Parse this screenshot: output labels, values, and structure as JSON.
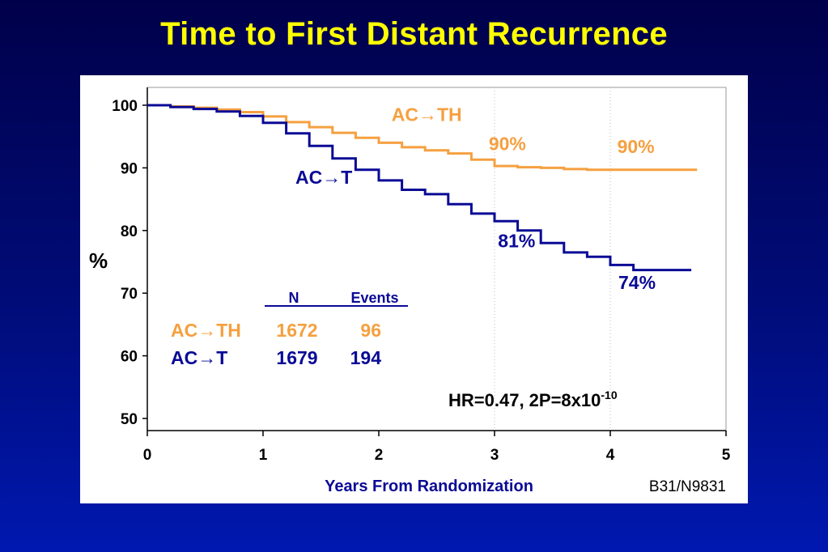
{
  "title": "Time to First Distant Recurrence",
  "source_label": "B31/N9831",
  "chart_data": {
    "type": "line",
    "xlabel": "Years From Randomization",
    "ylabel": "%",
    "xlim": [
      0,
      5
    ],
    "ylim": [
      50,
      100
    ],
    "x_ticks": [
      0,
      1,
      2,
      3,
      4,
      5
    ],
    "y_ticks": [
      50,
      60,
      70,
      80,
      90,
      100
    ],
    "reference_lines_x": [
      3,
      4
    ],
    "colors": {
      "ACTH": "#f5a040",
      "ACT": "#0a0a96",
      "axis": "#000000"
    },
    "series": [
      {
        "name": "AC→TH",
        "x": [
          0,
          0.2,
          0.4,
          0.6,
          0.8,
          1.0,
          1.2,
          1.4,
          1.6,
          1.8,
          2.0,
          2.2,
          2.4,
          2.6,
          2.8,
          3.0,
          3.2,
          3.4,
          3.6,
          3.8,
          4.0,
          4.2,
          4.4,
          4.6,
          4.75
        ],
        "y": [
          100,
          99.8,
          99.6,
          99.3,
          98.9,
          98.2,
          97.3,
          96.5,
          95.6,
          94.8,
          94.0,
          93.3,
          92.8,
          92.3,
          91.3,
          90.3,
          90.1,
          90.0,
          89.8,
          89.7,
          89.7,
          89.7,
          89.7,
          89.7,
          89.7
        ]
      },
      {
        "name": "AC→T",
        "x": [
          0,
          0.2,
          0.4,
          0.6,
          0.8,
          1.0,
          1.2,
          1.4,
          1.6,
          1.8,
          2.0,
          2.2,
          2.4,
          2.6,
          2.8,
          3.0,
          3.2,
          3.4,
          3.6,
          3.8,
          4.0,
          4.2,
          4.4,
          4.6,
          4.7
        ],
        "y": [
          100,
          99.7,
          99.4,
          99.0,
          98.3,
          97.2,
          95.5,
          93.5,
          91.5,
          89.7,
          88.0,
          86.5,
          85.8,
          84.2,
          82.7,
          81.5,
          80.0,
          78.0,
          76.5,
          75.8,
          74.5,
          73.7,
          73.7,
          73.7,
          73.7
        ]
      }
    ],
    "annotations": [
      {
        "text": "90%",
        "series": "AC→TH",
        "x": 2.95,
        "y": 92.8
      },
      {
        "text": "90%",
        "series": "AC→TH",
        "x": 4.06,
        "y": 92.4
      },
      {
        "text": "81%",
        "series": "AC→T",
        "x": 3.03,
        "y": 77.3
      },
      {
        "text": "74%",
        "series": "AC→T",
        "x": 4.07,
        "y": 70.7
      }
    ],
    "series_labels": [
      {
        "text": "AC→TH",
        "series": "AC→TH",
        "x": 2.11,
        "y": 97.5
      },
      {
        "text": "AC→T",
        "series": "AC→T",
        "x": 1.28,
        "y": 87.5
      }
    ],
    "table": {
      "headers": [
        "N",
        "Events"
      ],
      "rows": [
        {
          "label": "AC→TH",
          "n": "1672",
          "events": "96"
        },
        {
          "label": "AC→T",
          "n": "1679",
          "events": "194"
        }
      ]
    },
    "stats": {
      "text": "HR=0.47, 2P=8x10",
      "exponent": "-10"
    }
  }
}
